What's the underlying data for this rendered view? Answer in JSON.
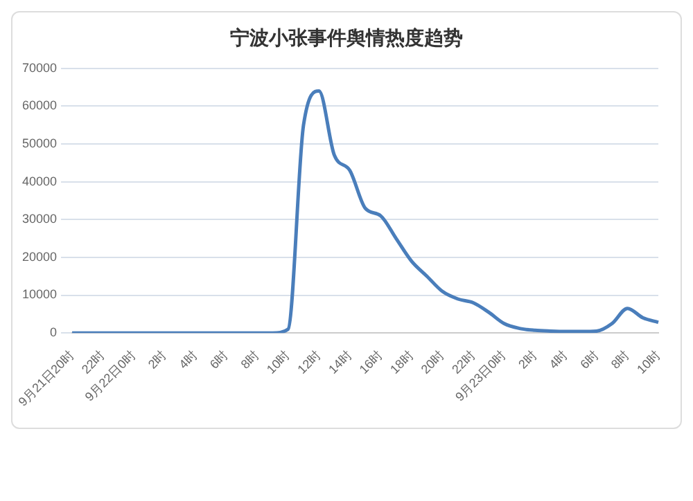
{
  "chart_data": {
    "type": "line",
    "title": "宁波小张事件舆情热度趋势",
    "categories": [
      "9月21日20时",
      null,
      "22时",
      null,
      "9月22日0时",
      null,
      "2时",
      null,
      "4时",
      null,
      "6时",
      null,
      "8时",
      null,
      "10时",
      null,
      "12时",
      null,
      "14时",
      null,
      "16时",
      null,
      "18时",
      null,
      "20时",
      null,
      "22时",
      null,
      "9月23日0时",
      null,
      "2时",
      null,
      "4时",
      null,
      "6时",
      null,
      "8时",
      null,
      "10时"
    ],
    "series": [
      {
        "color": "#4a7ebb",
        "values": [
          0,
          0,
          0,
          0,
          0,
          0,
          0,
          0,
          0,
          0,
          0,
          0,
          0,
          0,
          1000,
          55000,
          64000,
          47000,
          43000,
          33000,
          31000,
          25000,
          19000,
          15000,
          11000,
          9000,
          8000,
          5500,
          2500,
          1200,
          700,
          500,
          400,
          400,
          500,
          2500,
          6500,
          4000,
          2800
        ]
      }
    ],
    "ylim": [
      0,
      70000
    ],
    "yticks": [
      0,
      10000,
      20000,
      30000,
      40000,
      50000,
      60000,
      70000
    ],
    "grid": "y",
    "marker": "none",
    "line_style": "solid"
  }
}
